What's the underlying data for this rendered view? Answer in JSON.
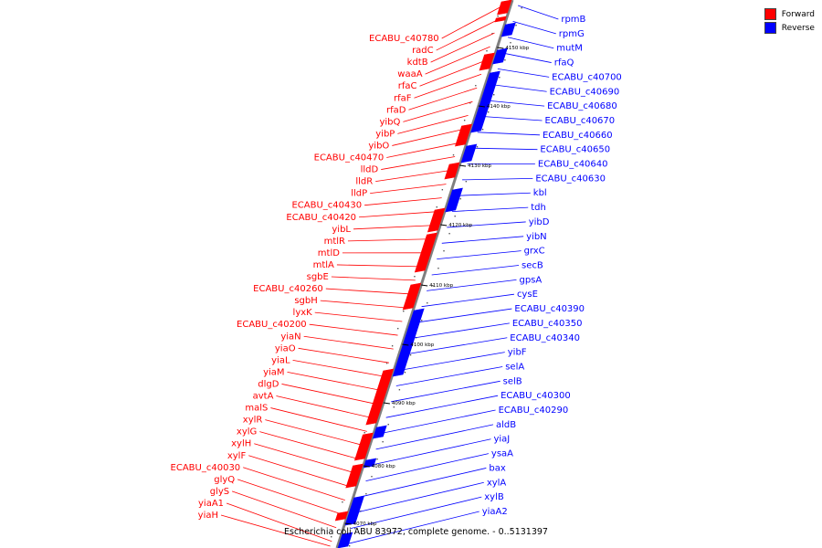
{
  "colors": {
    "forward": "#ff0000",
    "reverse": "#0000ff",
    "axis": "#7f7f7f"
  },
  "legend": [
    {
      "label": "Forward",
      "color": "#ff0000"
    },
    {
      "label": "Reverse",
      "color": "#0000ff"
    }
  ],
  "caption": "Escherichia coli ABU 83972, complete genome. - 0..5131397",
  "ticks": [
    "4070 kbp",
    "4080 kbp",
    "4090 kbp",
    "4100 kbp",
    "4110 kbp",
    "4120 kbp",
    "4130 kbp",
    "4140 kbp",
    "4150 kbp"
  ],
  "forward_genes": [
    "ECABU_c40780",
    "radC",
    "kdtB",
    "waaA",
    "rfaC",
    "rfaF",
    "rfaD",
    "yibQ",
    "yibP",
    "yibO",
    "ECABU_c40470",
    "lldD",
    "lldR",
    "lldP",
    "ECABU_c40430",
    "ECABU_c40420",
    "yibL",
    "mtlR",
    "mtlD",
    "mtlA",
    "sgbE",
    "ECABU_c40260",
    "sgbH",
    "lyxK",
    "ECABU_c40200",
    "yiaN",
    "yiaO",
    "yiaL",
    "yiaM",
    "dlgD",
    "avtA",
    "malS",
    "xylR",
    "xylG",
    "xylH",
    "xylF",
    "ECABU_c40030",
    "glyQ",
    "glyS",
    "yiaA1",
    "yiaH"
  ],
  "reverse_genes": [
    "rpmB",
    "rpmG",
    "mutM",
    "rfaQ",
    "ECABU_c40700",
    "ECABU_c40690",
    "ECABU_c40680",
    "ECABU_c40670",
    "ECABU_c40660",
    "ECABU_c40650",
    "ECABU_c40640",
    "ECABU_c40630",
    "kbl",
    "tdh",
    "yibD",
    "yibN",
    "grxC",
    "secB",
    "gpsA",
    "cysE",
    "ECABU_c40390",
    "ECABU_c40350",
    "ECABU_c40340",
    "yibF",
    "selA",
    "selB",
    "ECABU_c40300",
    "ECABU_c40290",
    "aldB",
    "yiaJ",
    "ysaA",
    "bax",
    "xylA",
    "xylB",
    "yiaA2"
  ]
}
